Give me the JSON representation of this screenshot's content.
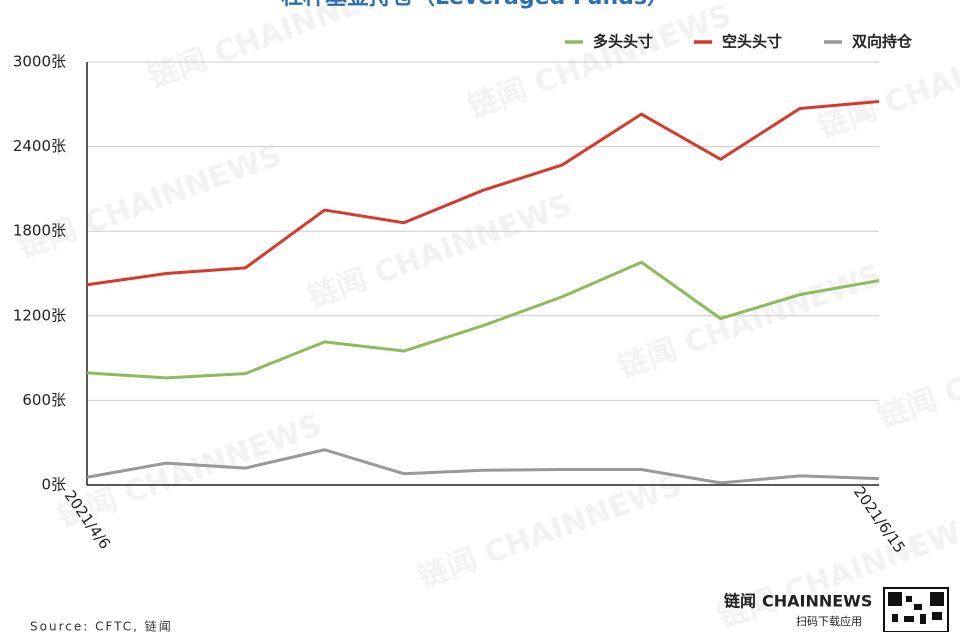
{
  "chart_data": {
    "type": "line",
    "title": "杠杆基金持仓（Leveraged Funds）",
    "categories": [
      "2021/4/6",
      null,
      null,
      null,
      null,
      null,
      null,
      null,
      null,
      null,
      "2021/6/15"
    ],
    "series": [
      {
        "name": "多头头寸",
        "color": "#8dbb5a",
        "values": [
          795,
          760,
          790,
          1015,
          950,
          1130,
          1335,
          1580,
          1180,
          1350,
          1450
        ]
      },
      {
        "name": "空头头寸",
        "color": "#d63a2e",
        "values": [
          1420,
          1500,
          1540,
          1950,
          1860,
          2090,
          2270,
          2630,
          2310,
          2670,
          2720
        ]
      },
      {
        "name": "双向持仓",
        "color": "#999999",
        "values": [
          55,
          155,
          120,
          250,
          80,
          105,
          110,
          110,
          15,
          65,
          45
        ]
      }
    ],
    "ylim": [
      0,
      3000
    ],
    "yticks": [
      {
        "value": 0,
        "label": "0张"
      },
      {
        "value": 600,
        "label": "600张"
      },
      {
        "value": 1200,
        "label": "1200张"
      },
      {
        "value": 1800,
        "label": "1800张"
      },
      {
        "value": 2400,
        "label": "2400张"
      },
      {
        "value": 3000,
        "label": "3000张"
      }
    ],
    "grid": true,
    "legend": "top-right",
    "source": "Source: CFTC, 链闻",
    "watermark": "链闻 CHAINNEWS",
    "logo": {
      "brand": "链闻",
      "name": "CHAINNEWS",
      "caption": "扫码下载应用"
    }
  }
}
